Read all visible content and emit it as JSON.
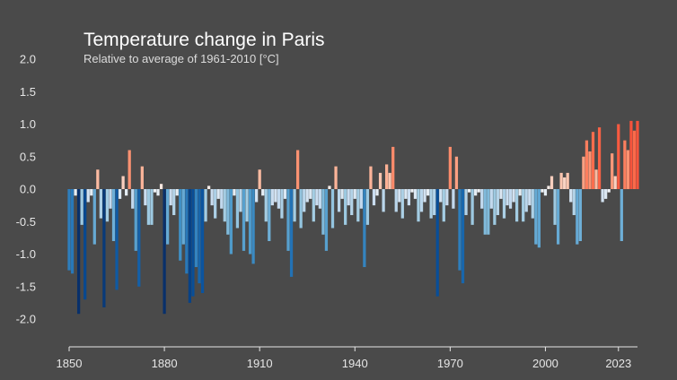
{
  "chart_data": {
    "type": "bar",
    "title": "Temperature change in Paris",
    "subtitle": "Relative to average of 1961-2010  [°C]",
    "xlabel": "",
    "ylabel": "",
    "xlim": [
      1850,
      2023
    ],
    "ylim": [
      -2.0,
      2.0
    ],
    "x_ticks": [
      "1850",
      "1880",
      "1910",
      "1940",
      "1970",
      "2000",
      "2023"
    ],
    "y_ticks": [
      "2.0",
      "1.5",
      "1.0",
      "0.5",
      "0.0",
      "-0.5",
      "-1.0",
      "-1.5",
      "-2.0"
    ],
    "grid": false,
    "legend": false,
    "color_scale": {
      "cold_max": "#08306b",
      "neutral": "#f7f7f7",
      "warm_max": "#67000d"
    },
    "start_year": 1850,
    "values": [
      -1.25,
      -1.3,
      -0.1,
      -1.92,
      -0.55,
      -1.7,
      -0.2,
      -0.1,
      -0.85,
      0.3,
      -0.45,
      -1.82,
      -0.5,
      -0.3,
      -0.8,
      -1.55,
      -0.15,
      0.2,
      -0.1,
      0.6,
      -0.3,
      -0.95,
      -1.5,
      0.35,
      -0.25,
      -0.55,
      -0.55,
      -0.05,
      -0.1,
      0.08,
      -1.92,
      -0.85,
      -0.25,
      -0.4,
      -0.1,
      -1.1,
      -0.85,
      -1.3,
      -1.75,
      -1.65,
      -1.2,
      -1.45,
      -1.6,
      -0.5,
      0.05,
      -0.25,
      -0.45,
      -0.15,
      -0.3,
      -0.5,
      -0.7,
      -1.0,
      -0.1,
      -0.6,
      -0.35,
      -0.95,
      -0.5,
      -1.0,
      -1.15,
      -0.2,
      0.3,
      -0.1,
      -0.5,
      -0.8,
      -0.25,
      -0.2,
      -0.3,
      -0.45,
      -0.15,
      -0.95,
      -1.35,
      -0.5,
      0.6,
      -0.6,
      -0.35,
      -0.2,
      -0.15,
      -0.5,
      -0.25,
      -0.3,
      -0.7,
      -0.95,
      0.05,
      -0.6,
      0.35,
      -0.35,
      -0.15,
      -0.55,
      -0.25,
      -0.4,
      -0.15,
      -0.5,
      -0.3,
      -1.2,
      -0.55,
      0.35,
      -0.25,
      -0.1,
      0.25,
      -0.35,
      0.38,
      0.25,
      0.65,
      -0.35,
      -0.2,
      -0.45,
      -0.15,
      -0.25,
      -0.05,
      -0.15,
      -0.5,
      -0.35,
      -0.2,
      -0.1,
      -0.45,
      -0.4,
      -1.65,
      -0.2,
      -0.5,
      -0.25,
      0.65,
      -0.3,
      0.5,
      -1.25,
      -1.45,
      -0.4,
      -0.05,
      -0.55,
      -0.1,
      -0.05,
      -0.3,
      -0.7,
      -0.7,
      -0.3,
      -0.55,
      -0.4,
      -0.15,
      -0.45,
      -0.25,
      -0.3,
      -0.2,
      -0.5,
      -0.1,
      -0.5,
      -0.35,
      -0.25,
      -0.45,
      -0.85,
      -0.9,
      -0.05,
      -0.1,
      0.05,
      0.2,
      -0.55,
      -0.85,
      0.25,
      0.18,
      0.25,
      -0.2,
      -0.4,
      -0.85,
      -0.8,
      0.5,
      0.75,
      0.58,
      0.88,
      0.3,
      0.95,
      -0.2,
      -0.15,
      -0.05,
      0.55,
      0.2,
      1.0,
      -0.8,
      0.75,
      0.6,
      1.05,
      0.9,
      1.05
    ]
  }
}
